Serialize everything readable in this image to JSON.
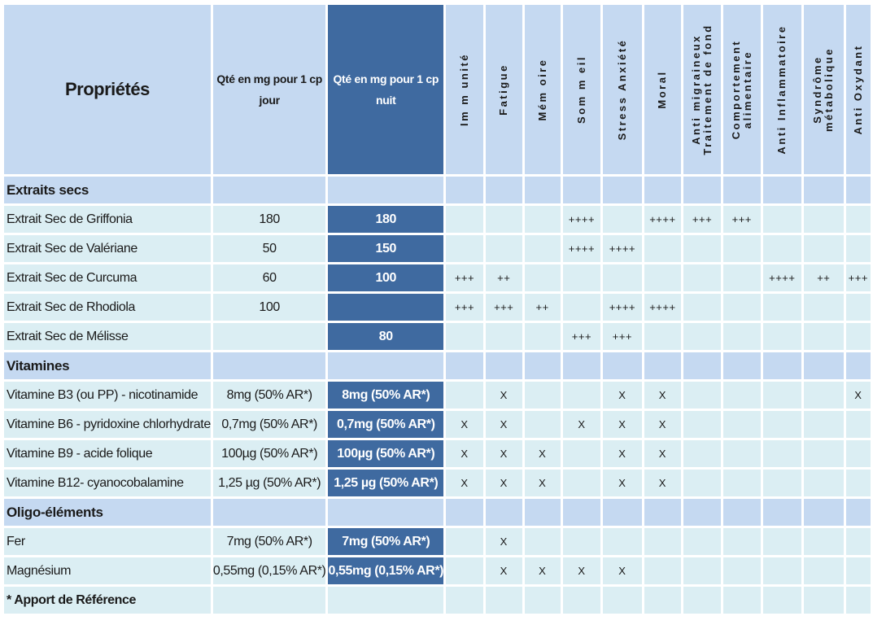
{
  "header": {
    "title": "Propriétés",
    "qty_day": "Qté en mg pour 1 cp jour",
    "qty_night": "Qté en mg pour 1 cp nuit",
    "properties": [
      "Im m unité",
      "Fatigue",
      "Mém oire",
      "Som m eil",
      "Stress Anxiété",
      "Moral",
      "Anti migraineux Traitement de fond",
      "Comportement alimentaire",
      "Anti Inflammatoire",
      "Syndrôme métabolique",
      "Anti Oxydant"
    ]
  },
  "sections": [
    {
      "title": "Extraits secs",
      "rows": [
        {
          "name": "Extrait Sec de Griffonia",
          "day": "180",
          "night": "180",
          "marks": [
            "",
            "",
            "",
            "++++",
            "",
            "++++",
            "+++",
            "+++",
            "",
            "",
            ""
          ]
        },
        {
          "name": "Extrait Sec de Valériane",
          "day": "50",
          "night": "150",
          "marks": [
            "",
            "",
            "",
            "++++",
            "++++",
            "",
            "",
            "",
            "",
            "",
            ""
          ]
        },
        {
          "name": "Extrait Sec de Curcuma",
          "day": "60",
          "night": "100",
          "marks": [
            "+++",
            "++",
            "",
            "",
            "",
            "",
            "",
            "",
            "++++",
            "++",
            "+++"
          ]
        },
        {
          "name": "Extrait Sec de Rhodiola",
          "day": "100",
          "night": "",
          "marks": [
            "+++",
            "+++",
            "++",
            "",
            "++++",
            "++++",
            "",
            "",
            "",
            "",
            ""
          ]
        },
        {
          "name": "Extrait Sec de Mélisse",
          "day": "",
          "night": "80",
          "marks": [
            "",
            "",
            "",
            "+++",
            "+++",
            "",
            "",
            "",
            "",
            "",
            ""
          ]
        }
      ]
    },
    {
      "title": "Vitamines",
      "rows": [
        {
          "name": "Vitamine B3 (ou PP) - nicotinamide",
          "day": "8mg (50% AR*)",
          "night": "8mg (50% AR*)",
          "marks": [
            "",
            "X",
            "",
            "",
            "X",
            "X",
            "",
            "",
            "",
            "",
            "X"
          ]
        },
        {
          "name": "Vitamine B6 - pyridoxine chlorhydrate",
          "day": "0,7mg (50% AR*)",
          "night": "0,7mg (50% AR*)",
          "marks": [
            "X",
            "X",
            "",
            "X",
            "X",
            "X",
            "",
            "",
            "",
            "",
            ""
          ]
        },
        {
          "name": "Vitamine B9 - acide folique",
          "day": "100µg (50% AR*)",
          "night": "100µg (50% AR*)",
          "marks": [
            "X",
            "X",
            "X",
            "",
            "X",
            "X",
            "",
            "",
            "",
            "",
            ""
          ]
        },
        {
          "name": "Vitamine B12- cyanocobalamine",
          "day": "1,25 µg (50% AR*)",
          "night": "1,25 µg (50% AR*)",
          "marks": [
            "X",
            "X",
            "X",
            "",
            "X",
            "X",
            "",
            "",
            "",
            "",
            ""
          ]
        }
      ]
    },
    {
      "title": "Oligo-éléments",
      "rows": [
        {
          "name": "Fer",
          "day": "7mg (50% AR*)",
          "night": "7mg (50% AR*)",
          "marks": [
            "",
            "X",
            "",
            "",
            "",
            "",
            "",
            "",
            "",
            "",
            ""
          ]
        },
        {
          "name": "Magnésium",
          "day": "0,55mg (0,15% AR*)",
          "night": "0,55mg (0,15% AR*)",
          "marks": [
            "",
            "X",
            "X",
            "X",
            "X",
            "",
            "",
            "",
            "",
            "",
            ""
          ]
        }
      ]
    }
  ],
  "footer": {
    "note": "* Apport de Référence"
  },
  "colors": {
    "header_bg": "#c5d9f1",
    "row_bg": "#dbeef3",
    "night_bg": "#3f6aa0",
    "night_text": "#ffffff"
  }
}
